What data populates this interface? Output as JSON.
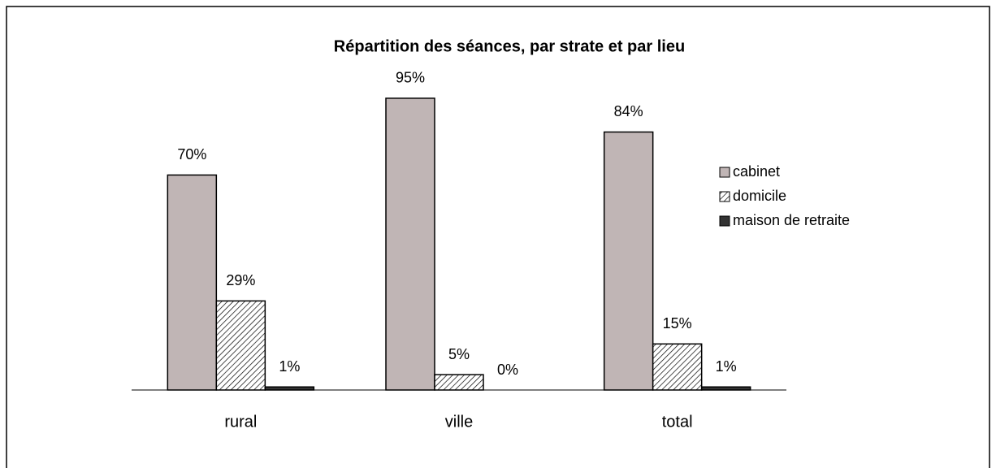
{
  "chart_data": {
    "type": "bar",
    "title": "Répartition des séances, par strate et par lieu",
    "categories": [
      "rural",
      "ville",
      "total"
    ],
    "series": [
      {
        "name": "cabinet",
        "color": "#c0b5b5",
        "values": [
          70,
          95,
          84
        ],
        "value_labels": [
          "70%",
          "95%",
          "84%"
        ]
      },
      {
        "name": "domicile",
        "color": "#ffffff",
        "pattern": "hatch",
        "values": [
          29,
          5,
          15
        ],
        "value_labels": [
          "29%",
          "5%",
          "15%"
        ]
      },
      {
        "name": "maison de retraite",
        "color": "#333333",
        "values": [
          1,
          0,
          1
        ],
        "value_labels": [
          "1%",
          "0%",
          "1%"
        ]
      }
    ],
    "ylim": [
      0,
      100
    ],
    "legend": "right"
  }
}
